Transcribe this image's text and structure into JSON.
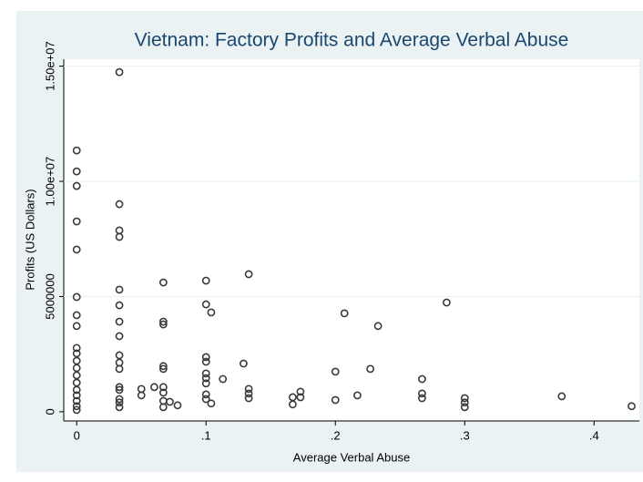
{
  "chart_data": {
    "type": "scatter",
    "title": "Vietnam: Factory Profits and Average Verbal Abuse",
    "x_label": "Average Verbal Abuse",
    "y_label": "Profits (US Dollars)",
    "color": "#3a3a3a",
    "grid": true,
    "xlim": [
      -0.01,
      0.435
    ],
    "ylim": [
      -400000,
      15300000
    ],
    "xticks": [
      0,
      {
        "value": 0.1,
        "label": ".1"
      },
      {
        "value": 0.2,
        "label": ".2"
      },
      {
        "value": 0.3,
        "label": ".3"
      },
      {
        "value": 0.4,
        "label": ".4"
      }
    ],
    "yticks": [
      0,
      5000000,
      {
        "value": 10000000,
        "label": "1.00e+07"
      },
      {
        "value": 15000000,
        "label": "1.50e+07"
      }
    ],
    "x": [
      0,
      0,
      0,
      0,
      0,
      0,
      0,
      0,
      0,
      0,
      0,
      0,
      0,
      0,
      0,
      0,
      0,
      0,
      0,
      0.033,
      0.033,
      0.033,
      0.033,
      0.033,
      0.033,
      0.033,
      0.033,
      0.033,
      0.033,
      0.033,
      0.033,
      0.033,
      0.033,
      0.033,
      0.033,
      0.05,
      0.05,
      0.06,
      0.067,
      0.067,
      0.067,
      0.067,
      0.067,
      0.067,
      0.067,
      0.067,
      0.067,
      0.072,
      0.078,
      0.1,
      0.1,
      0.1,
      0.1,
      0.1,
      0.1,
      0.1,
      0.1,
      0.1,
      0.104,
      0.104,
      0.113,
      0.129,
      0.133,
      0.133,
      0.133,
      0.133,
      0.167,
      0.167,
      0.173,
      0.173,
      0.2,
      0.2,
      0.207,
      0.217,
      0.227,
      0.233,
      0.267,
      0.267,
      0.267,
      0.286,
      0.3,
      0.3,
      0.3,
      0.375,
      0.429
    ],
    "y": [
      11340000,
      10430000,
      9800000,
      8260000,
      7040000,
      4980000,
      4190000,
      3720000,
      2770000,
      2530000,
      2210000,
      1900000,
      1580000,
      1260000,
      950000,
      710000,
      470000,
      240000,
      80000,
      14740000,
      9010000,
      7870000,
      7590000,
      5300000,
      4620000,
      3910000,
      3280000,
      2450000,
      2130000,
      1860000,
      1070000,
      950000,
      550000,
      400000,
      200000,
      990000,
      710000,
      1070000,
      5610000,
      3910000,
      3790000,
      1980000,
      1860000,
      1070000,
      830000,
      470000,
      200000,
      430000,
      280000,
      5690000,
      4660000,
      2370000,
      2170000,
      1660000,
      1460000,
      1230000,
      750000,
      550000,
      4310000,
      360000,
      1420000,
      2090000,
      5970000,
      990000,
      790000,
      590000,
      630000,
      320000,
      870000,
      630000,
      1740000,
      510000,
      4270000,
      710000,
      1860000,
      3720000,
      1420000,
      790000,
      590000,
      4740000,
      590000,
      400000,
      200000,
      670000,
      240000
    ]
  }
}
